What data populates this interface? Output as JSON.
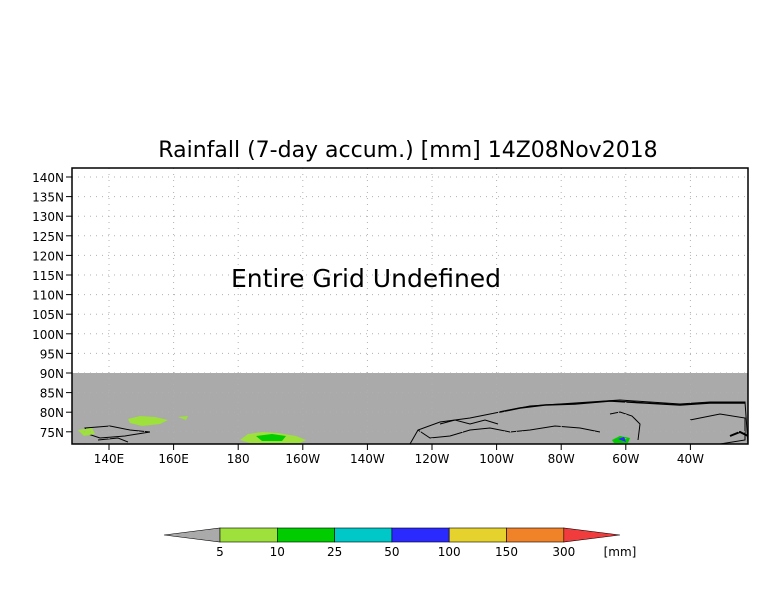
{
  "title": "Rainfall (7-day accum.) [mm] 14Z08Nov2018",
  "notice": "Entire Grid Undefined",
  "lat_labels": [
    "140N",
    "135N",
    "130N",
    "125N",
    "120N",
    "115N",
    "110N",
    "105N",
    "100N",
    "95N",
    "90N",
    "85N",
    "80N",
    "75N"
  ],
  "lon_labels": [
    "140E",
    "160E",
    "180",
    "160W",
    "140W",
    "120W",
    "100W",
    "80W",
    "60W",
    "40W"
  ],
  "colorbar": {
    "ticks": [
      "5",
      "10",
      "25",
      "50",
      "100",
      "150",
      "300"
    ],
    "unit": "[mm]",
    "colors": [
      "#aaaaaa",
      "#9ee03c",
      "#00cc00",
      "#00c8c8",
      "#2a2aff",
      "#e6d22d",
      "#f08228",
      "#f03c3c"
    ]
  },
  "colors": {
    "undefined_area": "#aaaaaa",
    "land_outline": "#000000",
    "gridline": "#b0b0b0"
  }
}
